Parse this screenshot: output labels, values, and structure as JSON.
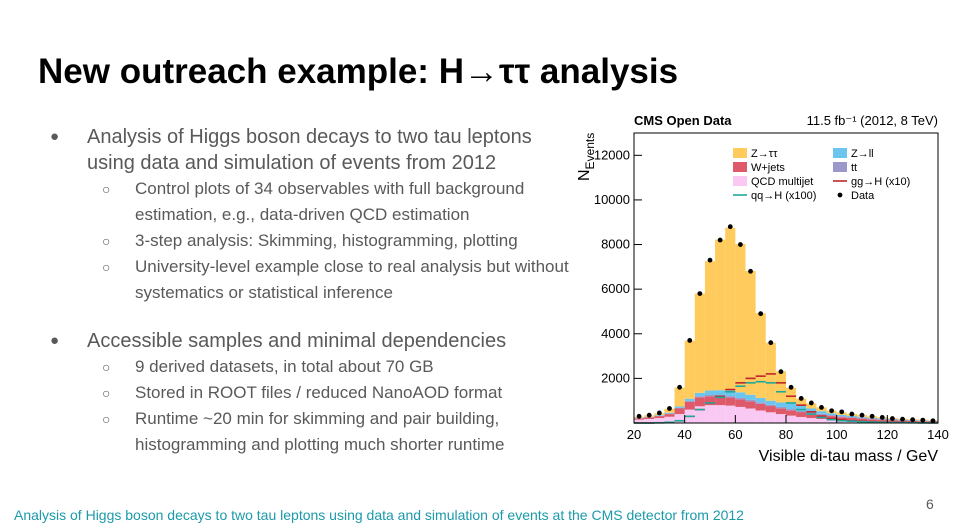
{
  "title": "New outreach example: H→ττ analysis",
  "bullets": [
    {
      "text": "Analysis of Higgs boson decays to two tau leptons using data and simulation of events from 2012",
      "sub": [
        "Control plots of 34 observables with full background estimation, e.g., data-driven QCD estimation",
        "3-step analysis: Skimming, histogramming, plotting",
        "University-level example close to real analysis but without systematics or statistical inference"
      ]
    },
    {
      "text": "Accessible samples and minimal dependencies",
      "sub": [
        "9 derived datasets, in total about 70 GB",
        "Stored in ROOT files / reduced NanoAOD format",
        "Runtime ~20 min for skimming and pair building, histogramming and plotting much shorter runtime"
      ]
    }
  ],
  "footer": "Analysis of Higgs boson decays to two tau leptons using data and simulation of events at the CMS detector from 2012",
  "page_number": "6",
  "chart_data": {
    "type": "stacked-histogram",
    "title": "CMS Open Data",
    "subtitle": "11.5 fb⁻¹ (2012, 8 TeV)",
    "x_label": "Visible di-tau mass / GeV",
    "y_label": [
      "N",
      "Events"
    ],
    "bins": [
      20,
      24,
      28,
      32,
      36,
      40,
      44,
      48,
      52,
      56,
      60,
      64,
      68,
      72,
      76,
      80,
      84,
      88,
      92,
      96,
      100,
      104,
      108,
      112,
      116,
      120,
      124,
      128,
      132,
      136,
      140
    ],
    "xlim": [
      20,
      140
    ],
    "xticks": [
      20,
      40,
      60,
      80,
      100,
      120,
      140
    ],
    "ylim": [
      0,
      13000
    ],
    "yticks": [
      2000,
      4000,
      6000,
      8000,
      10000,
      12000
    ],
    "series": [
      {
        "name": "QCD multijet",
        "color": "#f9c9f3",
        "values": [
          150,
          180,
          220,
          280,
          400,
          600,
          750,
          800,
          800,
          780,
          720,
          650,
          560,
          480,
          400,
          330,
          270,
          220,
          180,
          150,
          120,
          100,
          85,
          70,
          60,
          50,
          40,
          35,
          30,
          25
        ]
      },
      {
        "name": "W+jets",
        "color": "#de5a6a",
        "values": [
          60,
          70,
          90,
          120,
          250,
          350,
          400,
          400,
          380,
          360,
          340,
          320,
          300,
          280,
          260,
          240,
          220,
          200,
          180,
          160,
          140,
          125,
          110,
          95,
          85,
          75,
          65,
          55,
          50,
          45
        ]
      },
      {
        "name": "tt",
        "color": "#9b98cc",
        "values": [
          10,
          10,
          15,
          20,
          30,
          40,
          50,
          55,
          60,
          65,
          65,
          65,
          65,
          60,
          60,
          55,
          55,
          50,
          50,
          45,
          45,
          40,
          40,
          35,
          35,
          30,
          30,
          25,
          25,
          20
        ]
      },
      {
        "name": "Z→ll",
        "color": "#6bc5ef",
        "values": [
          20,
          20,
          30,
          40,
          60,
          100,
          150,
          200,
          230,
          250,
          250,
          230,
          200,
          180,
          200,
          250,
          230,
          180,
          120,
          80,
          60,
          50,
          40,
          35,
          30,
          25,
          20,
          18,
          15,
          12
        ]
      },
      {
        "name": "Z→ττ",
        "color": "#fecb5c",
        "values": [
          40,
          60,
          80,
          180,
          850,
          2600,
          4450,
          5800,
          6750,
          7300,
          6650,
          5550,
          3800,
          2600,
          1400,
          700,
          320,
          230,
          170,
          120,
          110,
          85,
          75,
          65,
          50,
          40,
          35,
          35,
          30,
          20
        ]
      }
    ],
    "lines": [
      {
        "name": "gg→H (x10)",
        "color": "#c0262b",
        "values": [
          0,
          0,
          10,
          30,
          100,
          300,
          600,
          900,
          1200,
          1500,
          1800,
          2000,
          2100,
          2200,
          1800,
          1200,
          800,
          500,
          300,
          200,
          150,
          100,
          80,
          60,
          40,
          30,
          20,
          15,
          10,
          5
        ]
      },
      {
        "name": "qq→H (x100)",
        "color": "#1fa99a",
        "values": [
          0,
          0,
          10,
          30,
          100,
          300,
          600,
          900,
          1150,
          1400,
          1650,
          1800,
          1850,
          1800,
          1400,
          900,
          600,
          400,
          250,
          150,
          100,
          80,
          60,
          40,
          30,
          20,
          15,
          10,
          5,
          5
        ]
      }
    ],
    "data_points": {
      "name": "Data",
      "color": "#000000",
      "values": [
        300,
        350,
        450,
        650,
        1600,
        3700,
        5800,
        7300,
        8200,
        8800,
        8000,
        6800,
        4900,
        3600,
        2300,
        1600,
        1100,
        900,
        700,
        550,
        500,
        400,
        350,
        300,
        250,
        200,
        170,
        150,
        130,
        100
      ]
    }
  }
}
